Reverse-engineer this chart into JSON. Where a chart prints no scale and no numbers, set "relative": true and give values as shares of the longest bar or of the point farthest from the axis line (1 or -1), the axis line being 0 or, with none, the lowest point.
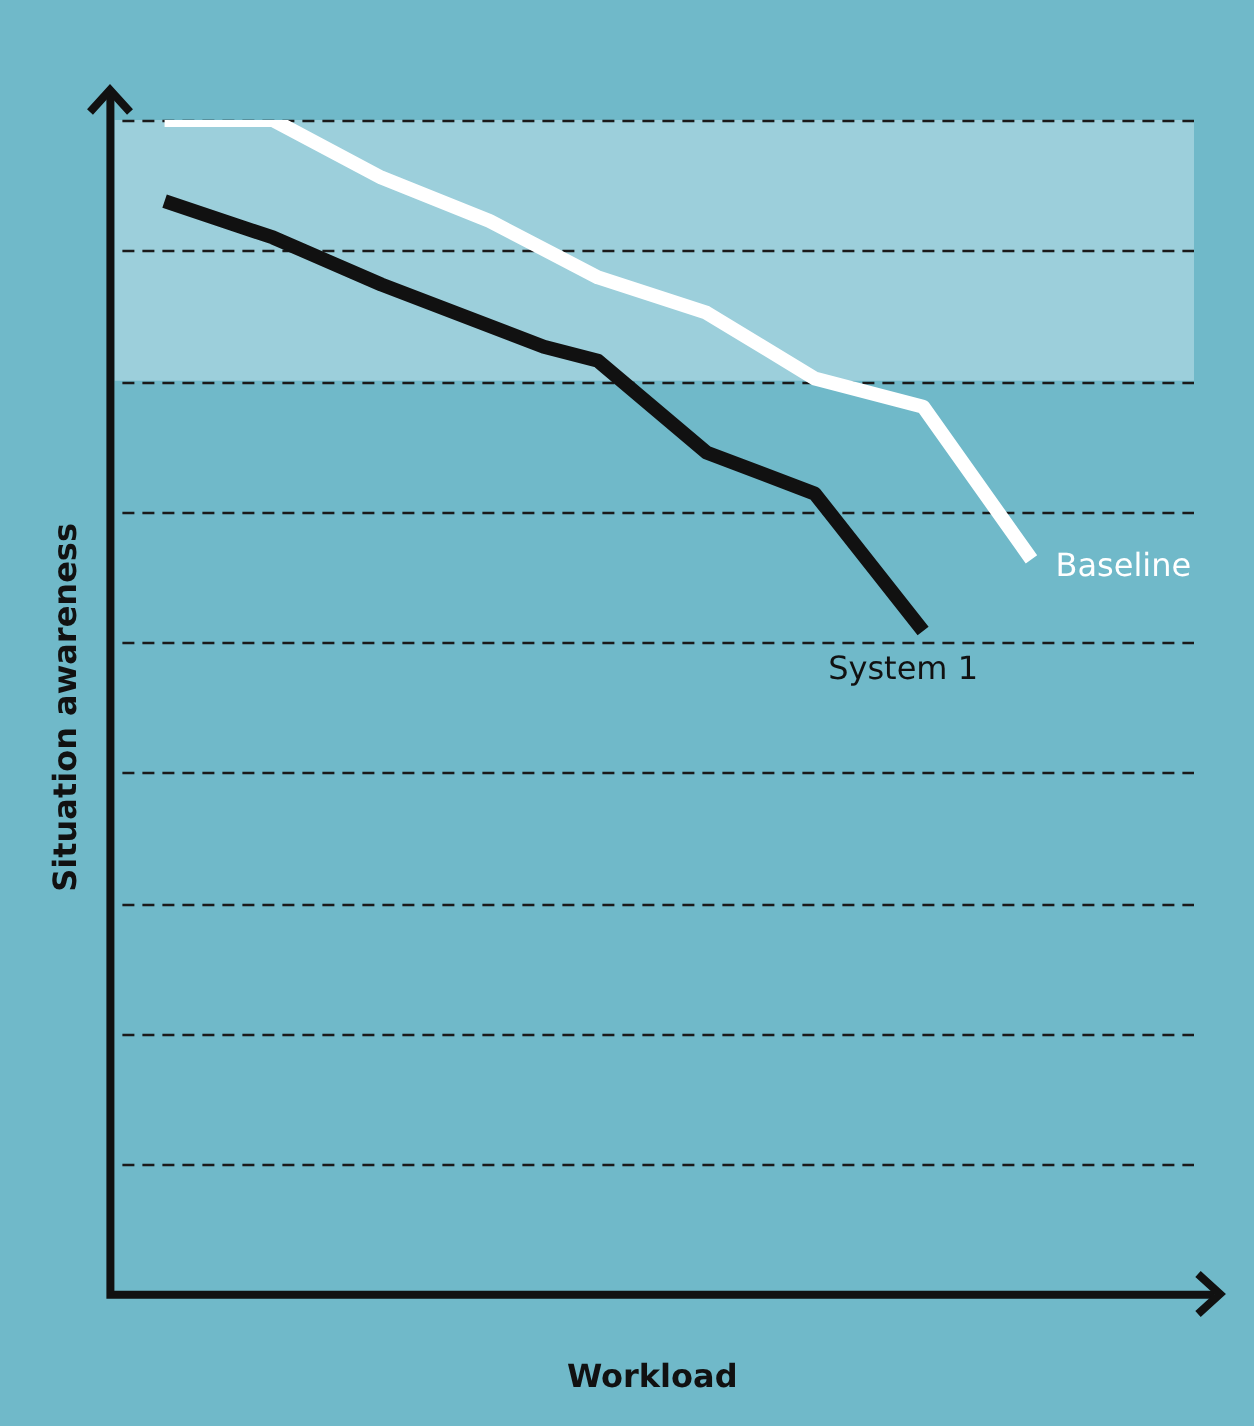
{
  "chart_data": {
    "type": "line",
    "relative": true,
    "xlabel": "Workload",
    "ylabel": "Situation awareness",
    "categories": [
      null,
      null,
      null,
      null,
      null,
      null,
      null,
      null,
      null,
      null,
      null,
      null,
      null,
      null,
      null,
      null,
      null,
      null,
      null,
      null,
      null
    ],
    "series": [
      {
        "name": "Baseline",
        "color": "#ffffff",
        "values": [
          null,
          1.0,
          null,
          1.0,
          null,
          0.951,
          null,
          0.914,
          null,
          0.866,
          null,
          0.836,
          null,
          0.78,
          null,
          0.756,
          null,
          0.626,
          null,
          null,
          null
        ]
      },
      {
        "name": "System 1",
        "color": "#111111",
        "values": [
          null,
          0.931,
          null,
          0.9,
          null,
          0.86,
          null,
          null,
          0.807,
          0.795,
          null,
          0.717,
          null,
          0.682,
          null,
          0.565,
          null,
          null,
          null,
          null,
          null
        ]
      }
    ],
    "bands": [
      {
        "axis": "y",
        "from": 0.778,
        "to": 1.0,
        "color": "#9ccfdb"
      }
    ],
    "grid": "y",
    "legend": false,
    "line_style": "solid",
    "marker": "none"
  }
}
